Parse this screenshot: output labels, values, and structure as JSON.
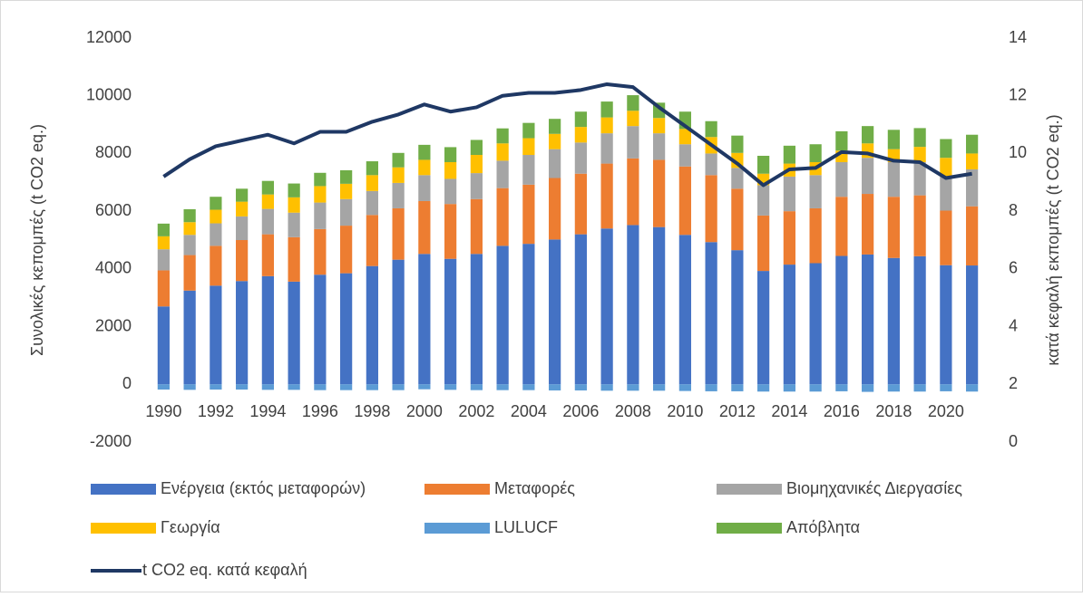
{
  "chart_data": {
    "type": "bar",
    "stacked": true,
    "y_label": "Συνολικές κεπομπές (t CO2 eq.)",
    "y2_label": "κατά κεφαλή εκπομπές (t CO2 eq.)",
    "categories": [
      "1990",
      null,
      "1992",
      null,
      "1994",
      null,
      "1996",
      null,
      "1998",
      null,
      "2000",
      null,
      "2002",
      null,
      "2004",
      null,
      "2006",
      null,
      "2008",
      null,
      "2010",
      null,
      "2012",
      null,
      "2014",
      null,
      "2016",
      null,
      "2018",
      null,
      "2020",
      null
    ],
    "series": [
      {
        "name": "Ενέργεια (εκτός μεταφορών)",
        "color": "#4472c4",
        "values": [
          2700,
          3250,
          3420,
          3580,
          3750,
          3560,
          3800,
          3850,
          4100,
          4320,
          4520,
          4350,
          4520,
          4800,
          4870,
          5020,
          5200,
          5400,
          5520,
          5450,
          5180,
          4930,
          4650,
          3930,
          4150,
          4200,
          4450,
          4500,
          4380,
          4440,
          4130,
          4120
        ]
      },
      {
        "name": "Μεταφορές",
        "color": "#ed7d31",
        "values": [
          1250,
          1230,
          1380,
          1420,
          1450,
          1540,
          1580,
          1650,
          1770,
          1780,
          1830,
          1900,
          1900,
          2000,
          2050,
          2130,
          2100,
          2250,
          2310,
          2330,
          2370,
          2320,
          2130,
          1920,
          1850,
          1900,
          2050,
          2100,
          2120,
          2110,
          1890,
          2050
        ]
      },
      {
        "name": "Βιομηχανικές Διεργασίες",
        "color": "#a5a5a5",
        "values": [
          730,
          700,
          780,
          820,
          880,
          850,
          920,
          920,
          830,
          880,
          900,
          870,
          900,
          950,
          1030,
          1000,
          1080,
          1050,
          1120,
          920,
          770,
          750,
          720,
          1050,
          1200,
          1150,
          1200,
          1250,
          1200,
          1150,
          1180,
          1280
        ]
      },
      {
        "name": "Γεωργία",
        "color": "#ffc000",
        "values": [
          450,
          440,
          470,
          510,
          500,
          530,
          570,
          530,
          550,
          540,
          530,
          580,
          630,
          600,
          580,
          530,
          540,
          550,
          530,
          530,
          530,
          570,
          520,
          400,
          450,
          450,
          400,
          500,
          450,
          530,
          650,
          550
        ]
      },
      {
        "name": "LULUCF",
        "color": "#5b9bd5",
        "values": [
          -180,
          -190,
          -180,
          -180,
          -190,
          -190,
          -200,
          -200,
          -200,
          -200,
          -170,
          -190,
          -200,
          -200,
          -200,
          -210,
          -210,
          -220,
          -220,
          -220,
          -230,
          -240,
          -240,
          -250,
          -250,
          -250,
          -240,
          -260,
          -250,
          -250,
          -240,
          -250
        ]
      },
      {
        "name": "Απόβλητα",
        "color": "#70ad47",
        "values": [
          440,
          450,
          450,
          450,
          470,
          480,
          460,
          470,
          480,
          500,
          520,
          520,
          520,
          520,
          530,
          520,
          530,
          550,
          540,
          530,
          600,
          550,
          600,
          620,
          620,
          620,
          670,
          600,
          670,
          650,
          650,
          650
        ]
      },
      {
        "name": "t CO2 eq. κατά κεφαλή",
        "color": "#1f3864",
        "type": "line",
        "axis": "y2",
        "values": [
          9.2,
          9.8,
          10.25,
          10.45,
          10.65,
          10.35,
          10.75,
          10.75,
          11.1,
          11.35,
          11.7,
          11.45,
          11.6,
          12.0,
          12.1,
          12.1,
          12.2,
          12.4,
          12.3,
          11.6,
          10.95,
          10.3,
          9.65,
          8.9,
          9.45,
          9.5,
          10.05,
          10.0,
          9.75,
          9.7,
          9.15,
          9.3
        ]
      }
    ],
    "ylim": [
      -2000,
      12000
    ],
    "yticks": [
      -2000,
      0,
      2000,
      4000,
      6000,
      8000,
      10000,
      12000
    ],
    "y2lim": [
      0,
      14
    ],
    "y2ticks": [
      0,
      2,
      4,
      6,
      8,
      10,
      12,
      14
    ],
    "grid": false,
    "legend": "bottom"
  }
}
